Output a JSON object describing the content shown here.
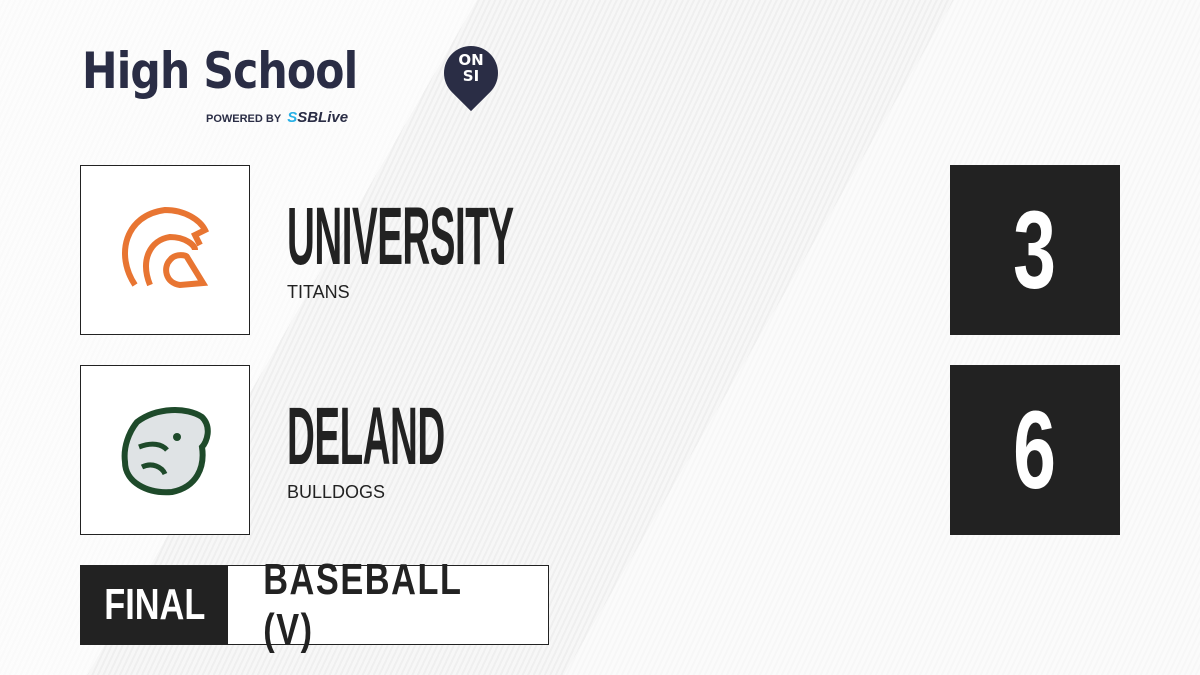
{
  "brand": {
    "title": "High School",
    "badge_line1": "ON",
    "badge_line2": "SI",
    "powered_by": "POWERED BY",
    "partner_s": "S",
    "partner": "SBLive"
  },
  "teams": [
    {
      "name": "UNIVERSITY",
      "mascot": "TITANS",
      "score": "3",
      "logo_color": "#e87532"
    },
    {
      "name": "DELAND",
      "mascot": "BULLDOGS",
      "score": "6",
      "logo_color": "#1e4a2a"
    }
  ],
  "status": "FINAL",
  "sport": "BASEBALL (V)"
}
